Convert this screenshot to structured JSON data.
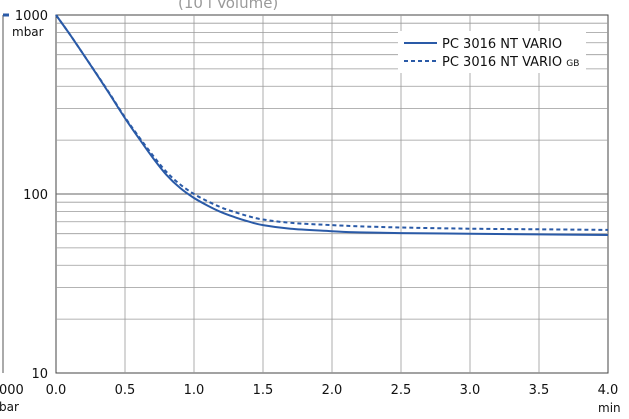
{
  "chart_data": {
    "type": "line",
    "title": "(10 l Volume)",
    "xlabel": "",
    "ylabel": "",
    "x_unit": "min",
    "y_unit": "mbar",
    "yscale": "log",
    "xlim": [
      0,
      4.0
    ],
    "ylim": [
      10,
      1000
    ],
    "x_ticks": [
      "0.0",
      "0.5",
      "1.0",
      "1.5",
      "2.0",
      "2.5",
      "3.0",
      "3.5",
      "4.0"
    ],
    "y_ticks": [
      "10",
      "100",
      "1000"
    ],
    "grid": true,
    "legend_position": "top-right",
    "series": [
      {
        "name": "PC 3016 NT VARIO",
        "style": "solid",
        "color": "#2a5aa7",
        "x": [
          0.0,
          0.1,
          0.2,
          0.3,
          0.4,
          0.5,
          0.6,
          0.7,
          0.8,
          0.9,
          1.0,
          1.1,
          1.2,
          1.3,
          1.4,
          1.5,
          1.7,
          2.0,
          2.2,
          2.5,
          3.0,
          3.5,
          4.0
        ],
        "y": [
          1000,
          780,
          600,
          460,
          350,
          265,
          205,
          160,
          128,
          108,
          95,
          86,
          79,
          74,
          70,
          67,
          64,
          62,
          61,
          60.5,
          60,
          59.5,
          59
        ]
      },
      {
        "name": "PC 3016 NT VARIO GB",
        "style": "dashed",
        "color": "#2a5aa7",
        "x": [
          0.0,
          0.1,
          0.2,
          0.3,
          0.4,
          0.5,
          0.6,
          0.7,
          0.8,
          0.9,
          1.0,
          1.1,
          1.2,
          1.3,
          1.4,
          1.5,
          1.7,
          2.0,
          2.2,
          2.5,
          3.0,
          3.5,
          4.0
        ],
        "y": [
          1000,
          780,
          600,
          462,
          353,
          268,
          209,
          165,
          133,
          113,
          100,
          91,
          84,
          79,
          75,
          72,
          69,
          67,
          66,
          65,
          64,
          63.5,
          63
        ]
      }
    ],
    "legend": {
      "solid_label": "PC 3016 NT VARIO",
      "dashed_label_main": "PC 3016 NT VARIO",
      "dashed_label_sub": "GB"
    },
    "left_fragment": {
      "tick": "000",
      "unit": "bar"
    }
  }
}
